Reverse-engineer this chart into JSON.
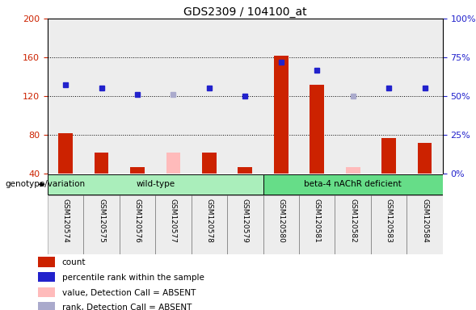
{
  "title": "GDS2309 / 104100_at",
  "samples": [
    "GSM120574",
    "GSM120575",
    "GSM120576",
    "GSM120577",
    "GSM120578",
    "GSM120579",
    "GSM120580",
    "GSM120581",
    "GSM120582",
    "GSM120583",
    "GSM120584"
  ],
  "count_values": [
    82,
    62,
    47,
    null,
    62,
    47,
    162,
    132,
    null,
    77,
    72
  ],
  "count_absent": [
    null,
    null,
    null,
    62,
    null,
    null,
    null,
    null,
    47,
    null,
    null
  ],
  "rank_present": [
    132,
    128,
    122,
    null,
    128,
    120,
    155,
    147,
    null,
    128,
    128
  ],
  "rank_absent": [
    null,
    null,
    null,
    122,
    null,
    null,
    null,
    null,
    120,
    null,
    null
  ],
  "ylim_left": [
    40,
    200
  ],
  "yticks_left": [
    40,
    80,
    120,
    160,
    200
  ],
  "yticks_right_labels": [
    "0%",
    "25%",
    "50%",
    "75%",
    "100%"
  ],
  "bar_color": "#cc2200",
  "bar_absent_color": "#ffbbbb",
  "dot_color": "#2222cc",
  "dot_absent_color": "#aaaacc",
  "group_colors": {
    "wild-type": "#aaeebb",
    "beta-4 nAChR deficient": "#66dd88"
  },
  "left_axis_color": "#cc2200",
  "right_axis_color": "#2222cc",
  "group_list": [
    {
      "name": "wild-type",
      "start": 0,
      "end": 5
    },
    {
      "name": "beta-4 nAChR deficient",
      "start": 6,
      "end": 10
    }
  ],
  "legend_items": [
    {
      "label": "count",
      "color": "#cc2200"
    },
    {
      "label": "percentile rank within the sample",
      "color": "#2222cc"
    },
    {
      "label": "value, Detection Call = ABSENT",
      "color": "#ffbbbb"
    },
    {
      "label": "rank, Detection Call = ABSENT",
      "color": "#aaaacc"
    }
  ],
  "genotype_label": "genotype/variation"
}
